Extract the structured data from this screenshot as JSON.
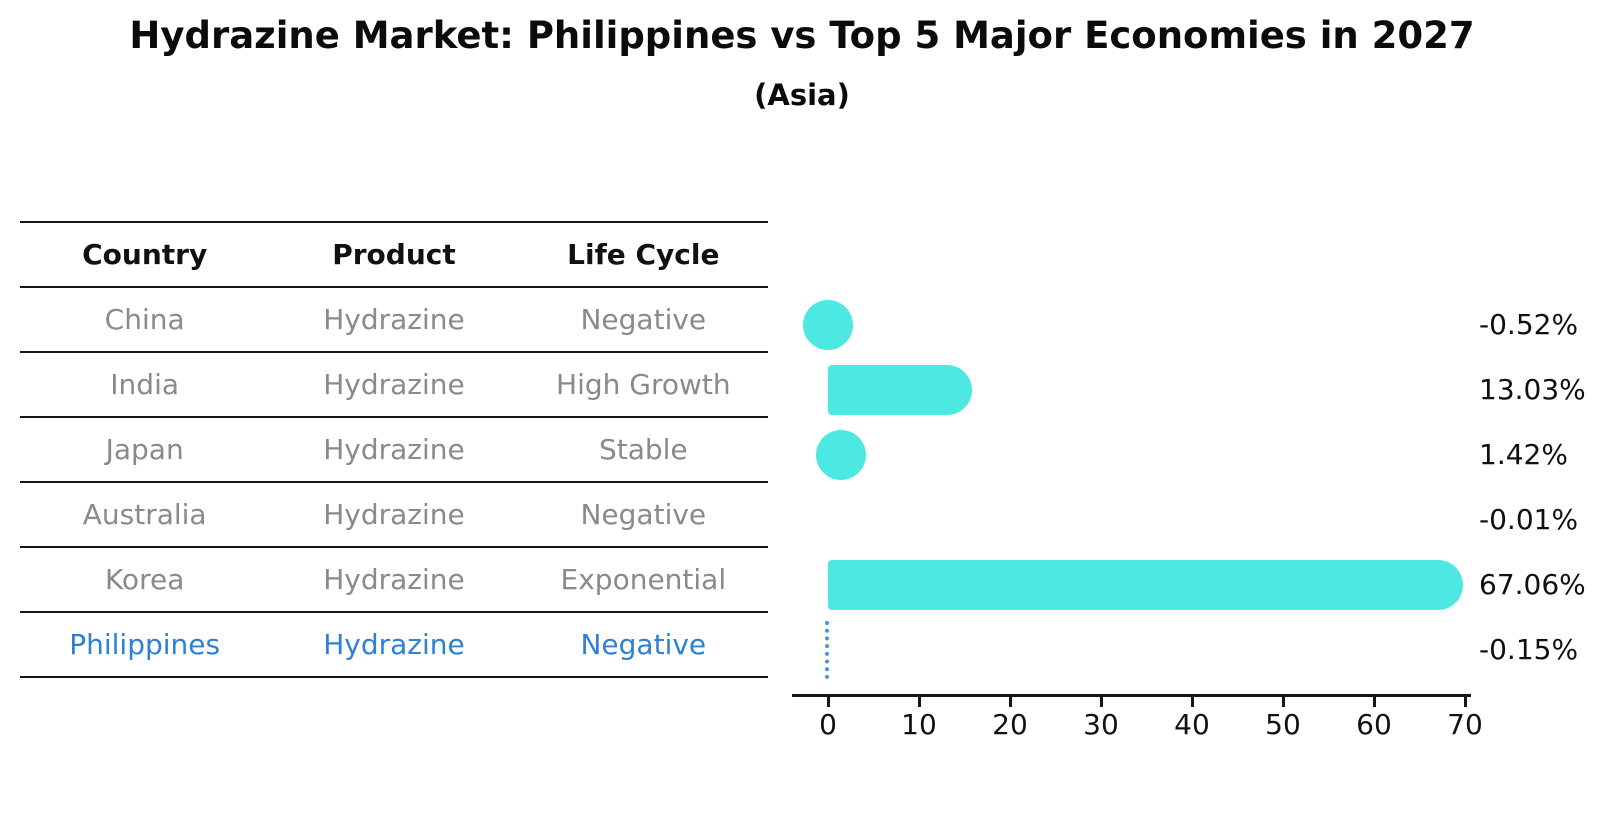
{
  "title": "Hydrazine Market: Philippines vs Top 5 Major Economies in 2027",
  "subtitle": "(Asia)",
  "table": {
    "headers": [
      "Country",
      "Product",
      "Life Cycle"
    ],
    "rows": [
      {
        "country": "China",
        "product": "Hydrazine",
        "life_cycle": "Negative",
        "highlight": false
      },
      {
        "country": "India",
        "product": "Hydrazine",
        "life_cycle": "High Growth",
        "highlight": false
      },
      {
        "country": "Japan",
        "product": "Hydrazine",
        "life_cycle": "Stable",
        "highlight": false
      },
      {
        "country": "Australia",
        "product": "Hydrazine",
        "life_cycle": "Negative",
        "highlight": false
      },
      {
        "country": "Korea",
        "product": "Hydrazine",
        "life_cycle": "Exponential",
        "highlight": false
      },
      {
        "country": "Philippines",
        "product": "Hydrazine",
        "life_cycle": "Negative",
        "highlight": true
      }
    ]
  },
  "chart_data": {
    "type": "bar",
    "orientation": "horizontal",
    "title": "Hydrazine Market: Philippines vs Top 5 Major Economies in 2027",
    "subtitle": "(Asia)",
    "categories": [
      "China",
      "India",
      "Japan",
      "Australia",
      "Korea",
      "Philippines"
    ],
    "values": [
      -0.52,
      13.03,
      1.42,
      -0.01,
      67.06,
      -0.15
    ],
    "value_labels": [
      "-0.52%",
      "13.03%",
      "1.42%",
      "-0.01%",
      "67.06%",
      "-0.15%"
    ],
    "xlabel": "",
    "ylabel": "",
    "xlim": [
      -4,
      70.6
    ],
    "xticks": [
      0,
      10,
      20,
      30,
      40,
      50,
      60,
      70
    ],
    "grid": false,
    "legend": "none",
    "bar_color": "#4DE8E2",
    "highlight_category": "Philippines",
    "highlight_color": "#2E80D6",
    "highlight_marker": "dotted-line-at-value"
  },
  "colors": {
    "background": "#ffffff",
    "bar": "#4DE8E2",
    "highlight_text": "#2E80D6",
    "highlight_marker": "#4A94DA",
    "table_line": "#151515",
    "body_text": "#8a8a8a",
    "axis": "#161616"
  }
}
